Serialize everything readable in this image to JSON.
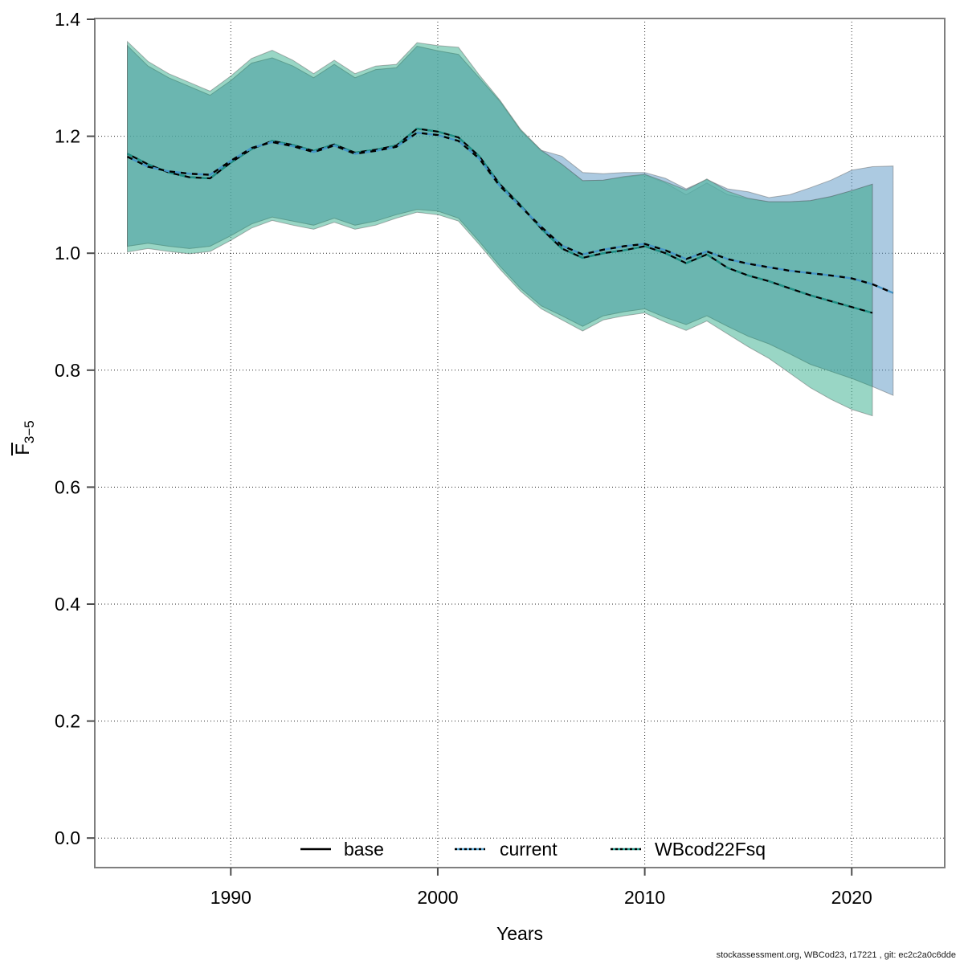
{
  "footer": {
    "text": "stockassessment.org, WBCod23, r17221 , git: ec2c2a0c6dde"
  },
  "chart_data": {
    "type": "area",
    "title": "",
    "xlabel": "Years",
    "ylabel": "F",
    "ylabel_sub": "3−5",
    "ylabel_overbar": true,
    "x_ticks": [
      1990,
      2000,
      2010,
      2020
    ],
    "y_ticks": [
      0.0,
      0.2,
      0.4,
      0.6,
      0.8,
      1.0,
      1.2,
      1.4
    ],
    "y_tick_labels": [
      "0.0",
      "0.2",
      "0.4",
      "0.6",
      "0.8",
      "1.0",
      "1.2",
      "1.4"
    ],
    "xlim": [
      1983.4,
      2024.5
    ],
    "ylim": [
      -0.05,
      1.4
    ],
    "grid": "dotted",
    "legend_position": "bottom-inside",
    "legend": [
      "base",
      "current",
      "WBcod22Fsq"
    ],
    "colors": {
      "base_line": "#000000",
      "current_line": "#4596c8",
      "wbcod_line": "#1d9186",
      "base_band": "rgba(100,110,120,0.25)",
      "current_band": "rgba(90,150,195,0.50)",
      "wbcod_band": "rgba(70,180,150,0.55)",
      "band_edge": "rgba(90,90,90,0.45)",
      "overlap_teal": "#72b7b2",
      "light_blue": "#a3c6d8",
      "light_green": "#a8d5c3",
      "axis": "#7f7f7f",
      "grid_color": "#262626"
    },
    "series": [
      {
        "name": "base",
        "line_style": "solid",
        "years": [
          1985,
          1986,
          1987,
          1988,
          1989,
          1990,
          1991,
          1992,
          1993,
          1994,
          1995,
          1996,
          1997,
          1998,
          1999,
          2000,
          2001,
          2002,
          2003,
          2004,
          2005,
          2006,
          2007,
          2008,
          2009,
          2010,
          2011,
          2012,
          2013,
          2014,
          2015,
          2016,
          2017,
          2018,
          2019,
          2020,
          2021
        ],
        "mean": [
          1.17,
          1.152,
          1.138,
          1.13,
          1.128,
          1.155,
          1.178,
          1.192,
          1.185,
          1.175,
          1.186,
          1.172,
          1.177,
          1.184,
          1.213,
          1.208,
          1.198,
          1.166,
          1.118,
          1.082,
          1.042,
          1.008,
          0.992,
          1.0,
          1.005,
          1.012,
          1.0,
          0.983,
          0.998,
          0.975,
          0.962,
          0.952,
          0.94,
          0.928,
          0.918,
          0.908,
          0.898
        ],
        "hi": [
          1.355,
          1.32,
          1.3,
          1.285,
          1.27,
          1.295,
          1.325,
          1.334,
          1.32,
          1.3,
          1.323,
          1.3,
          1.314,
          1.317,
          1.354,
          1.346,
          1.34,
          1.3,
          1.26,
          1.21,
          1.175,
          1.152,
          1.124,
          1.125,
          1.13,
          1.134,
          1.12,
          1.1,
          1.12,
          1.1,
          1.093,
          1.088,
          1.088,
          1.09,
          1.097,
          1.107,
          1.118
        ],
        "lo": [
          1.012,
          1.017,
          1.012,
          1.008,
          1.012,
          1.03,
          1.05,
          1.062,
          1.055,
          1.048,
          1.06,
          1.048,
          1.055,
          1.066,
          1.075,
          1.072,
          1.06,
          1.02,
          0.978,
          0.94,
          0.91,
          0.893,
          0.875,
          0.893,
          0.9,
          0.905,
          0.89,
          0.878,
          0.893,
          0.875,
          0.858,
          0.845,
          0.828,
          0.81,
          0.798,
          0.786,
          0.772
        ]
      },
      {
        "name": "current",
        "line_style": "dashed",
        "years": [
          1985,
          1986,
          1987,
          1988,
          1989,
          1990,
          1991,
          1992,
          1993,
          1994,
          1995,
          1996,
          1997,
          1998,
          1999,
          2000,
          2001,
          2002,
          2003,
          2004,
          2005,
          2006,
          2007,
          2008,
          2009,
          2010,
          2011,
          2012,
          2013,
          2014,
          2015,
          2016,
          2017,
          2018,
          2019,
          2020,
          2021,
          2022
        ],
        "mean": [
          1.165,
          1.148,
          1.14,
          1.136,
          1.134,
          1.158,
          1.18,
          1.19,
          1.183,
          1.173,
          1.184,
          1.17,
          1.175,
          1.182,
          1.206,
          1.202,
          1.192,
          1.162,
          1.115,
          1.08,
          1.045,
          1.013,
          0.998,
          1.006,
          1.012,
          1.016,
          1.005,
          0.99,
          1.003,
          0.99,
          0.982,
          0.976,
          0.97,
          0.966,
          0.962,
          0.957,
          0.947,
          0.932
        ],
        "hi": [
          1.355,
          1.32,
          1.3,
          1.285,
          1.27,
          1.295,
          1.325,
          1.334,
          1.32,
          1.3,
          1.323,
          1.3,
          1.314,
          1.317,
          1.354,
          1.346,
          1.34,
          1.3,
          1.26,
          1.21,
          1.176,
          1.166,
          1.138,
          1.136,
          1.138,
          1.138,
          1.128,
          1.11,
          1.126,
          1.11,
          1.105,
          1.095,
          1.1,
          1.112,
          1.125,
          1.142,
          1.148,
          1.149
        ],
        "lo": [
          1.012,
          1.017,
          1.012,
          1.008,
          1.012,
          1.03,
          1.05,
          1.062,
          1.055,
          1.048,
          1.06,
          1.048,
          1.055,
          1.066,
          1.075,
          1.072,
          1.06,
          1.02,
          0.978,
          0.94,
          0.91,
          0.893,
          0.875,
          0.893,
          0.9,
          0.905,
          0.89,
          0.878,
          0.893,
          0.875,
          0.858,
          0.845,
          0.828,
          0.81,
          0.798,
          0.786,
          0.772,
          0.757
        ]
      },
      {
        "name": "WBcod22Fsq",
        "line_style": "dashed",
        "years": [
          1985,
          1986,
          1987,
          1988,
          1989,
          1990,
          1991,
          1992,
          1993,
          1994,
          1995,
          1996,
          1997,
          1998,
          1999,
          2000,
          2001,
          2002,
          2003,
          2004,
          2005,
          2006,
          2007,
          2008,
          2009,
          2010,
          2011,
          2012,
          2013,
          2014,
          2015,
          2016,
          2017,
          2018,
          2019,
          2020,
          2021
        ],
        "mean": [
          1.17,
          1.152,
          1.138,
          1.13,
          1.128,
          1.155,
          1.178,
          1.192,
          1.185,
          1.175,
          1.186,
          1.172,
          1.177,
          1.184,
          1.213,
          1.208,
          1.198,
          1.166,
          1.118,
          1.082,
          1.042,
          1.008,
          0.992,
          1.0,
          1.005,
          1.012,
          1.0,
          0.983,
          0.998,
          0.975,
          0.962,
          0.952,
          0.94,
          0.928,
          0.918,
          0.908,
          0.898
        ],
        "hi": [
          1.362,
          1.328,
          1.307,
          1.292,
          1.277,
          1.303,
          1.333,
          1.347,
          1.33,
          1.307,
          1.33,
          1.307,
          1.32,
          1.323,
          1.36,
          1.355,
          1.352,
          1.305,
          1.262,
          1.212,
          1.176,
          1.152,
          1.124,
          1.125,
          1.131,
          1.135,
          1.122,
          1.108,
          1.127,
          1.106,
          1.094,
          1.088,
          1.088,
          1.09,
          1.097,
          1.107,
          1.118
        ],
        "lo": [
          1.002,
          1.008,
          1.003,
          0.999,
          1.003,
          1.022,
          1.043,
          1.056,
          1.048,
          1.041,
          1.053,
          1.041,
          1.048,
          1.06,
          1.07,
          1.066,
          1.055,
          1.015,
          0.973,
          0.935,
          0.905,
          0.886,
          0.867,
          0.886,
          0.893,
          0.898,
          0.882,
          0.868,
          0.884,
          0.862,
          0.84,
          0.82,
          0.795,
          0.77,
          0.75,
          0.733,
          0.722
        ]
      }
    ]
  }
}
